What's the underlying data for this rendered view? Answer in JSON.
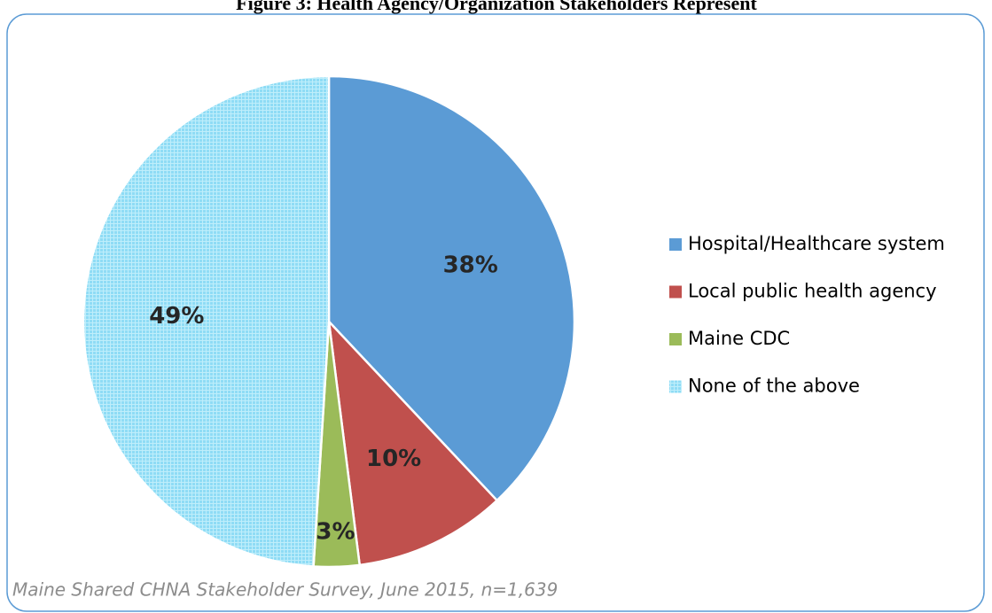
{
  "chart_data": {
    "type": "pie",
    "title": "Figure 3: Health Agency/Organization Stakeholders Represent",
    "categories": [
      "Hospital/Healthcare system",
      "Local public health agency",
      "Maine CDC",
      "None of the above"
    ],
    "values": [
      38,
      10,
      3,
      49
    ],
    "value_labels": [
      "38%",
      "10%",
      "3%",
      "49%"
    ],
    "colors": [
      "#5b9bd5",
      "#c0504d",
      "#9bbb59",
      "#8fdcf5"
    ],
    "legend": "right",
    "source": "Maine Shared CHNA Stakeholder Survey, June 2015, n=1,639"
  }
}
